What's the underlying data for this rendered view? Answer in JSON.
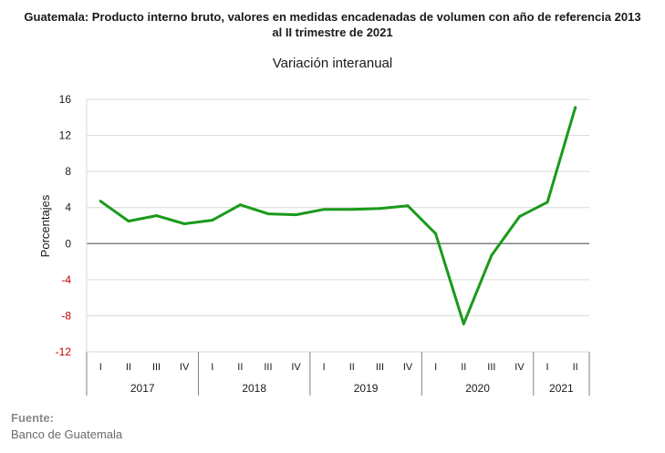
{
  "title_line1": "Guatemala: Producto interno bruto, valores en medidas encadenadas de volumen con año de referencia 2013",
  "title_line2": "al II trimestre de 2021",
  "colors": {
    "line": "#1a9a1a",
    "negative_tick": "#c00000",
    "grid": "#d9d9d9",
    "zero": "#808080"
  },
  "chart_data": {
    "type": "line",
    "title": "Variación interanual",
    "ylabel": "Porcentajes",
    "xlabel": "",
    "ylim": [
      -12,
      16
    ],
    "yticks": [
      16,
      12,
      8,
      4,
      0,
      -4,
      -8,
      -12
    ],
    "grid": true,
    "quarters": [
      "I",
      "II",
      "III",
      "IV",
      "I",
      "II",
      "III",
      "IV",
      "I",
      "II",
      "III",
      "IV",
      "I",
      "II",
      "III",
      "IV",
      "I",
      "II"
    ],
    "years": [
      {
        "label": "2017",
        "count": 4
      },
      {
        "label": "2018",
        "count": 4
      },
      {
        "label": "2019",
        "count": 4
      },
      {
        "label": "2020",
        "count": 4
      },
      {
        "label": "2021",
        "count": 2
      }
    ],
    "series": [
      {
        "values": [
          4.7,
          2.5,
          3.1,
          2.2,
          2.6,
          4.3,
          3.3,
          3.2,
          3.8,
          3.8,
          3.9,
          4.2,
          1.1,
          -8.9,
          -1.3,
          3.0,
          4.6,
          15.1
        ]
      }
    ]
  },
  "source": {
    "label": "Fuente:",
    "text": "Banco de Guatemala"
  }
}
